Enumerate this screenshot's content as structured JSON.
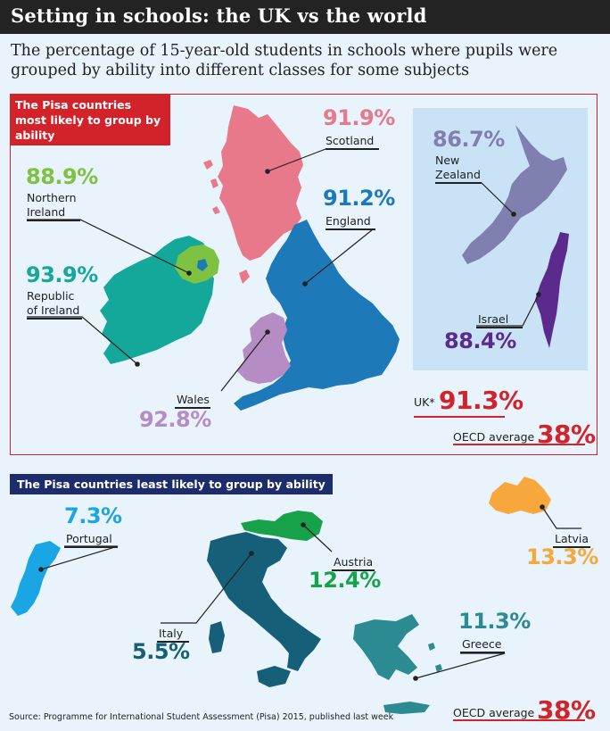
{
  "title": "Setting in schools: the UK vs the world",
  "subtitle": "The percentage of 15-year-old students in schools where pupils were grouped by ability into different classes for some subjects",
  "section_most": "The Pisa countries most likely to group by ability",
  "section_least": "The Pisa countries least likely to group by ability",
  "colors": {
    "scotland": "#e8798a",
    "england": "#1e79b8",
    "wales": "#b58cc4",
    "northern_ireland": "#7ec242",
    "ireland": "#14a89b",
    "new_zealand": "#7f7fb0",
    "israel": "#5b2a8c",
    "portugal": "#1aa5e5",
    "austria": "#17a24a",
    "italy": "#155f79",
    "latvia": "#f7a73b",
    "greece": "#2c8a92",
    "accent_red": "#d2232a",
    "accent_navy": "#1d2d6b"
  },
  "chart_data": {
    "type": "table",
    "most_likely": [
      {
        "name": "Scotland",
        "value": "91.9%"
      },
      {
        "name": "England",
        "value": "91.2%"
      },
      {
        "name": "Northern Ireland",
        "value": "88.9%"
      },
      {
        "name": "Republic of Ireland",
        "value": "93.9%"
      },
      {
        "name": "Wales",
        "value": "92.8%"
      },
      {
        "name": "New Zealand",
        "value": "86.7%"
      },
      {
        "name": "Israel",
        "value": "88.4%"
      }
    ],
    "uk": {
      "label": "UK*",
      "value": "91.3%"
    },
    "least_likely": [
      {
        "name": "Portugal",
        "value": "7.3%"
      },
      {
        "name": "Austria",
        "value": "12.4%"
      },
      {
        "name": "Italy",
        "value": "5.5%"
      },
      {
        "name": "Latvia",
        "value": "13.3%"
      },
      {
        "name": "Greece",
        "value": "11.3%"
      }
    ],
    "oecd_average": {
      "label": "OECD average",
      "value": "38%"
    }
  },
  "labels": {
    "scotland": "Scotland",
    "england": "England",
    "ni_1": "Northern",
    "ni_2": "Ireland",
    "roi_1": "Republic",
    "roi_2": "of Ireland",
    "wales": "Wales",
    "nz_1": "New",
    "nz_2": "Zealand",
    "israel": "Israel",
    "portugal": "Portugal",
    "austria": "Austria",
    "italy": "Italy",
    "latvia": "Latvia",
    "greece": "Greece"
  },
  "source": "Source: Programme for International Student Assessment (Pisa) 2015, published last week"
}
